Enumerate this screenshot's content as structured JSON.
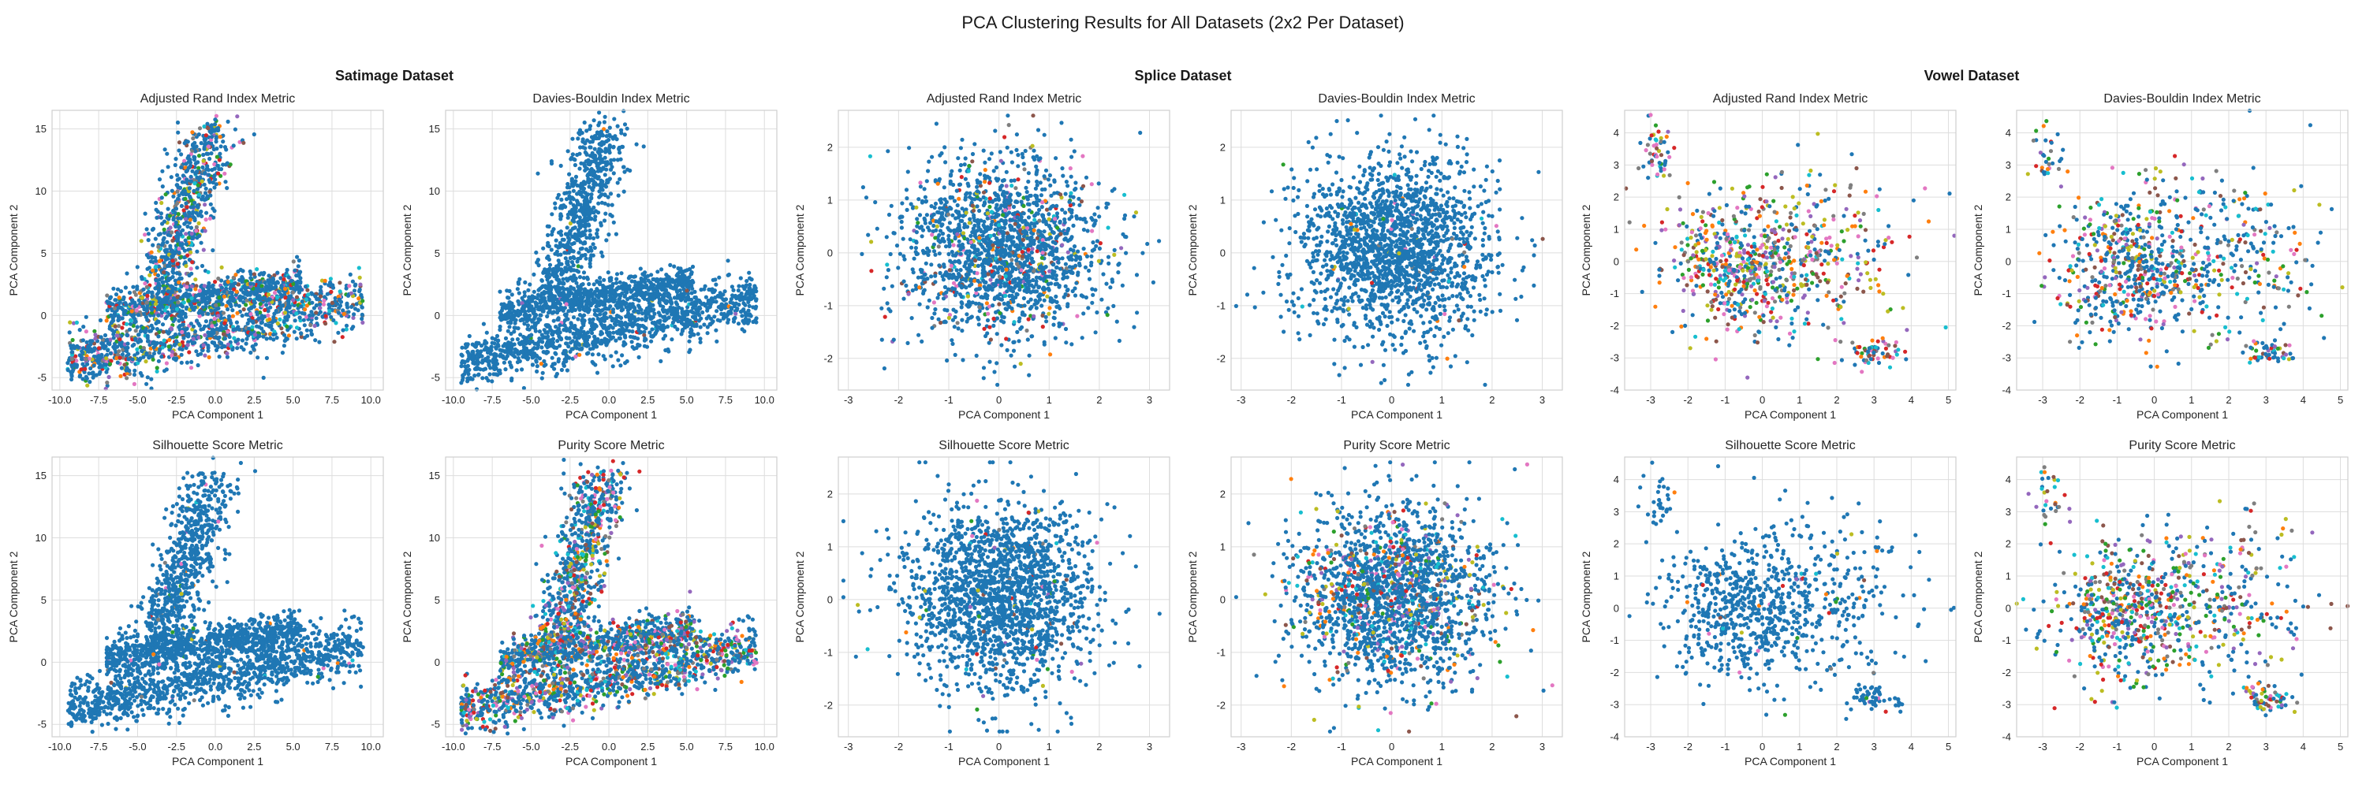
{
  "figure": {
    "suptitle": "PCA Clustering Results for All Datasets (2x2 Per Dataset)"
  },
  "groups": [
    {
      "title": "Satimage Dataset"
    },
    {
      "title": "Splice Dataset"
    },
    {
      "title": "Vowel Dataset"
    }
  ],
  "colors": {
    "main": "#1f77b4",
    "palette": [
      "#ff7f0e",
      "#2ca02c",
      "#d62728",
      "#9467bd",
      "#8c564b",
      "#e377c2",
      "#7f7f7f",
      "#bcbd22",
      "#17becf"
    ],
    "grid": "#dddddd",
    "spine": "#cfcfcf"
  },
  "chart_data": [
    {
      "type": "scatter",
      "dataset": "Satimage Dataset",
      "title": "Adjusted Rand Index Metric",
      "xlabel": "PCA Component 1",
      "ylabel": "PCA Component 2",
      "xlim": [
        -10.5,
        10.8
      ],
      "ylim": [
        -6,
        16.5
      ],
      "xticks": [
        -10.0,
        -7.5,
        -5.0,
        -2.5,
        0.0,
        2.5,
        5.0,
        7.5,
        10.0
      ],
      "yticks": [
        -5,
        0,
        5,
        10,
        15
      ],
      "grid": true,
      "shape": "satimage",
      "n": 2600,
      "mix": 0.32
    },
    {
      "type": "scatter",
      "dataset": "Satimage Dataset",
      "title": "Davies-Bouldin Index Metric",
      "xlabel": "PCA Component 1",
      "ylabel": "PCA Component 2",
      "xlim": [
        -10.5,
        10.8
      ],
      "ylim": [
        -6,
        16.5
      ],
      "xticks": [
        -10.0,
        -7.5,
        -5.0,
        -2.5,
        0.0,
        2.5,
        5.0,
        7.5,
        10.0
      ],
      "yticks": [
        -5,
        0,
        5,
        10,
        15
      ],
      "grid": true,
      "shape": "satimage",
      "n": 2600,
      "mix": 0.02
    },
    {
      "type": "scatter",
      "dataset": "Splice Dataset",
      "title": "Adjusted Rand Index Metric",
      "xlabel": "PCA Component 1",
      "ylabel": "PCA Component 2",
      "xlim": [
        -3.2,
        3.4
      ],
      "ylim": [
        -2.6,
        2.7
      ],
      "xticks": [
        -3,
        -2,
        -1,
        0,
        1,
        2,
        3
      ],
      "yticks": [
        -2,
        -1,
        0,
        1,
        2
      ],
      "grid": true,
      "shape": "splice",
      "n": 1800,
      "mix": 0.18
    },
    {
      "type": "scatter",
      "dataset": "Splice Dataset",
      "title": "Davies-Bouldin Index Metric",
      "xlabel": "PCA Component 1",
      "ylabel": "PCA Component 2",
      "xlim": [
        -3.2,
        3.4
      ],
      "ylim": [
        -2.6,
        2.7
      ],
      "xticks": [
        -3,
        -2,
        -1,
        0,
        1,
        2,
        3
      ],
      "yticks": [
        -2,
        -1,
        0,
        1,
        2
      ],
      "grid": true,
      "shape": "splice",
      "n": 1800,
      "mix": 0.03
    },
    {
      "type": "scatter",
      "dataset": "Vowel Dataset",
      "title": "Adjusted Rand Index Metric",
      "xlabel": "PCA Component 1",
      "ylabel": "PCA Component 2",
      "xlim": [
        -3.7,
        5.2
      ],
      "ylim": [
        -4,
        4.7
      ],
      "xticks": [
        -3,
        -2,
        -1,
        0,
        1,
        2,
        3,
        4,
        5
      ],
      "yticks": [
        -4,
        -3,
        -2,
        -1,
        0,
        1,
        2,
        3,
        4
      ],
      "grid": true,
      "shape": "vowel",
      "n": 900,
      "mix": 0.75
    },
    {
      "type": "scatter",
      "dataset": "Vowel Dataset",
      "title": "Davies-Bouldin Index Metric",
      "xlabel": "PCA Component 1",
      "ylabel": "PCA Component 2",
      "xlim": [
        -3.7,
        5.2
      ],
      "ylim": [
        -4,
        4.7
      ],
      "xticks": [
        -3,
        -2,
        -1,
        0,
        1,
        2,
        3,
        4,
        5
      ],
      "yticks": [
        -4,
        -3,
        -2,
        -1,
        0,
        1,
        2,
        3,
        4
      ],
      "grid": true,
      "shape": "vowel",
      "n": 900,
      "mix": 0.55
    },
    {
      "type": "scatter",
      "dataset": "Satimage Dataset",
      "title": "Silhouette Score Metric",
      "xlabel": "PCA Component 1",
      "ylabel": "PCA Component 2",
      "xlim": [
        -10.5,
        10.8
      ],
      "ylim": [
        -6,
        16.5
      ],
      "xticks": [
        -10.0,
        -7.5,
        -5.0,
        -2.5,
        0.0,
        2.5,
        5.0,
        7.5,
        10.0
      ],
      "yticks": [
        -5,
        0,
        5,
        10,
        15
      ],
      "grid": true,
      "shape": "satimage",
      "n": 2600,
      "mix": 0.02
    },
    {
      "type": "scatter",
      "dataset": "Satimage Dataset",
      "title": "Purity Score Metric",
      "xlabel": "PCA Component 1",
      "ylabel": "PCA Component 2",
      "xlim": [
        -10.5,
        10.8
      ],
      "ylim": [
        -6,
        16.5
      ],
      "xticks": [
        -10.0,
        -7.5,
        -5.0,
        -2.5,
        0.0,
        2.5,
        5.0,
        7.5,
        10.0
      ],
      "yticks": [
        -5,
        0,
        5,
        10,
        15
      ],
      "grid": true,
      "shape": "satimage",
      "n": 2600,
      "mix": 0.42
    },
    {
      "type": "scatter",
      "dataset": "Splice Dataset",
      "title": "Silhouette Score Metric",
      "xlabel": "PCA Component 1",
      "ylabel": "PCA Component 2",
      "xlim": [
        -3.2,
        3.4
      ],
      "ylim": [
        -2.6,
        2.7
      ],
      "xticks": [
        -3,
        -2,
        -1,
        0,
        1,
        2,
        3
      ],
      "yticks": [
        -2,
        -1,
        0,
        1,
        2
      ],
      "grid": true,
      "shape": "splice",
      "n": 1800,
      "mix": 0.04
    },
    {
      "type": "scatter",
      "dataset": "Splice Dataset",
      "title": "Purity Score Metric",
      "xlabel": "PCA Component 1",
      "ylabel": "PCA Component 2",
      "xlim": [
        -3.2,
        3.4
      ],
      "ylim": [
        -2.6,
        2.7
      ],
      "xticks": [
        -3,
        -2,
        -1,
        0,
        1,
        2,
        3
      ],
      "yticks": [
        -2,
        -1,
        0,
        1,
        2
      ],
      "grid": true,
      "shape": "splice",
      "n": 1800,
      "mix": 0.22
    },
    {
      "type": "scatter",
      "dataset": "Vowel Dataset",
      "title": "Silhouette Score Metric",
      "xlabel": "PCA Component 1",
      "ylabel": "PCA Component 2",
      "xlim": [
        -3.7,
        5.2
      ],
      "ylim": [
        -4,
        4.7
      ],
      "xticks": [
        -3,
        -2,
        -1,
        0,
        1,
        2,
        3,
        4,
        5
      ],
      "yticks": [
        -4,
        -3,
        -2,
        -1,
        0,
        1,
        2,
        3,
        4
      ],
      "grid": true,
      "shape": "vowel",
      "n": 900,
      "mix": 0.04
    },
    {
      "type": "scatter",
      "dataset": "Vowel Dataset",
      "title": "Purity Score Metric",
      "xlabel": "PCA Component 1",
      "ylabel": "PCA Component 2",
      "xlim": [
        -3.7,
        5.2
      ],
      "ylim": [
        -4,
        4.7
      ],
      "xticks": [
        -3,
        -2,
        -1,
        0,
        1,
        2,
        3,
        4,
        5
      ],
      "yticks": [
        -4,
        -3,
        -2,
        -1,
        0,
        1,
        2,
        3,
        4
      ],
      "grid": true,
      "shape": "vowel",
      "n": 900,
      "mix": 0.7
    }
  ]
}
